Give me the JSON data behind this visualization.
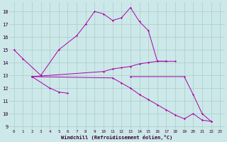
{
  "xlabel": "Windchill (Refroidissement éolien,°C)",
  "background_color": "#cce8e8",
  "grid_color": "#aacccc",
  "line_color": "#aa00aa",
  "xlim": [
    -0.5,
    23.5
  ],
  "ylim": [
    8.8,
    18.7
  ],
  "xticks": [
    0,
    1,
    2,
    3,
    4,
    5,
    6,
    7,
    8,
    9,
    10,
    11,
    12,
    13,
    14,
    15,
    16,
    17,
    18,
    19,
    20,
    21,
    22,
    23
  ],
  "yticks": [
    9,
    10,
    11,
    12,
    13,
    14,
    15,
    16,
    17,
    18
  ],
  "segments": [
    {
      "x": [
        0,
        1,
        3,
        5,
        7,
        8,
        9,
        10,
        11,
        12,
        13,
        14,
        15,
        16,
        17,
        18
      ],
      "y": [
        15.0,
        14.3,
        13.0,
        15.0,
        16.1,
        17.0,
        18.0,
        17.8,
        17.3,
        17.5,
        18.3,
        17.2,
        16.5,
        14.1,
        14.1,
        14.1
      ]
    },
    {
      "x": [
        2,
        4,
        5,
        6
      ],
      "y": [
        12.9,
        12.0,
        11.7,
        11.6
      ]
    },
    {
      "x": [
        2,
        10,
        11,
        12,
        13,
        14,
        15,
        16,
        17
      ],
      "y": [
        12.9,
        13.3,
        13.5,
        13.6,
        13.7,
        13.9,
        14.0,
        14.1,
        14.1
      ]
    },
    {
      "x": [
        2,
        11,
        12,
        13,
        14,
        15,
        16,
        17,
        18,
        19,
        20,
        21,
        22
      ],
      "y": [
        12.9,
        12.8,
        12.4,
        12.0,
        11.5,
        11.1,
        10.7,
        10.3,
        9.9,
        9.6,
        10.0,
        9.5,
        9.4
      ]
    },
    {
      "x": [
        13,
        19,
        20,
        21,
        22
      ],
      "y": [
        12.9,
        12.9,
        11.5,
        10.0,
        9.4
      ]
    }
  ]
}
